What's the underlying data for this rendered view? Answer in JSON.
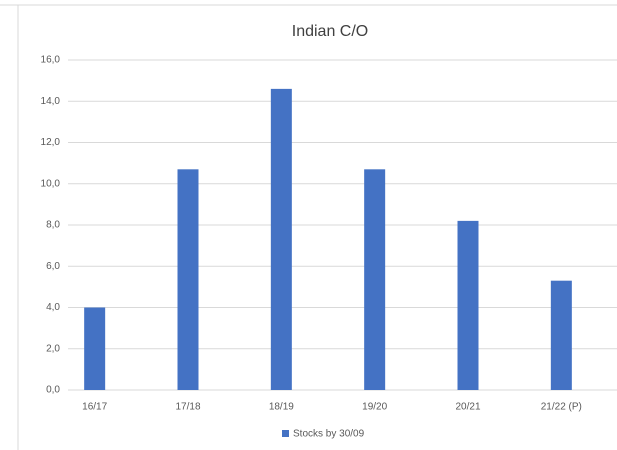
{
  "chart_data": {
    "type": "bar",
    "title": "Indian C/O",
    "categories": [
      "16/17",
      "17/18",
      "18/19",
      "19/20",
      "20/21",
      "21/22 (P)"
    ],
    "series": [
      {
        "name": "Stocks by 30/09",
        "color": "#4472c4",
        "values": [
          4.0,
          10.7,
          14.6,
          10.7,
          8.2,
          5.3
        ]
      }
    ],
    "ylim": [
      0,
      16
    ],
    "yticks": [
      {
        "value": 0,
        "label": "0,0"
      },
      {
        "value": 2,
        "label": "2,0"
      },
      {
        "value": 4,
        "label": "4,0"
      },
      {
        "value": 6,
        "label": "6,0"
      },
      {
        "value": 8,
        "label": "8,0"
      },
      {
        "value": 10,
        "label": "10,0"
      },
      {
        "value": 12,
        "label": "12,0"
      },
      {
        "value": 14,
        "label": "14,0"
      },
      {
        "value": 16,
        "label": "16,0"
      }
    ],
    "grid": true
  }
}
